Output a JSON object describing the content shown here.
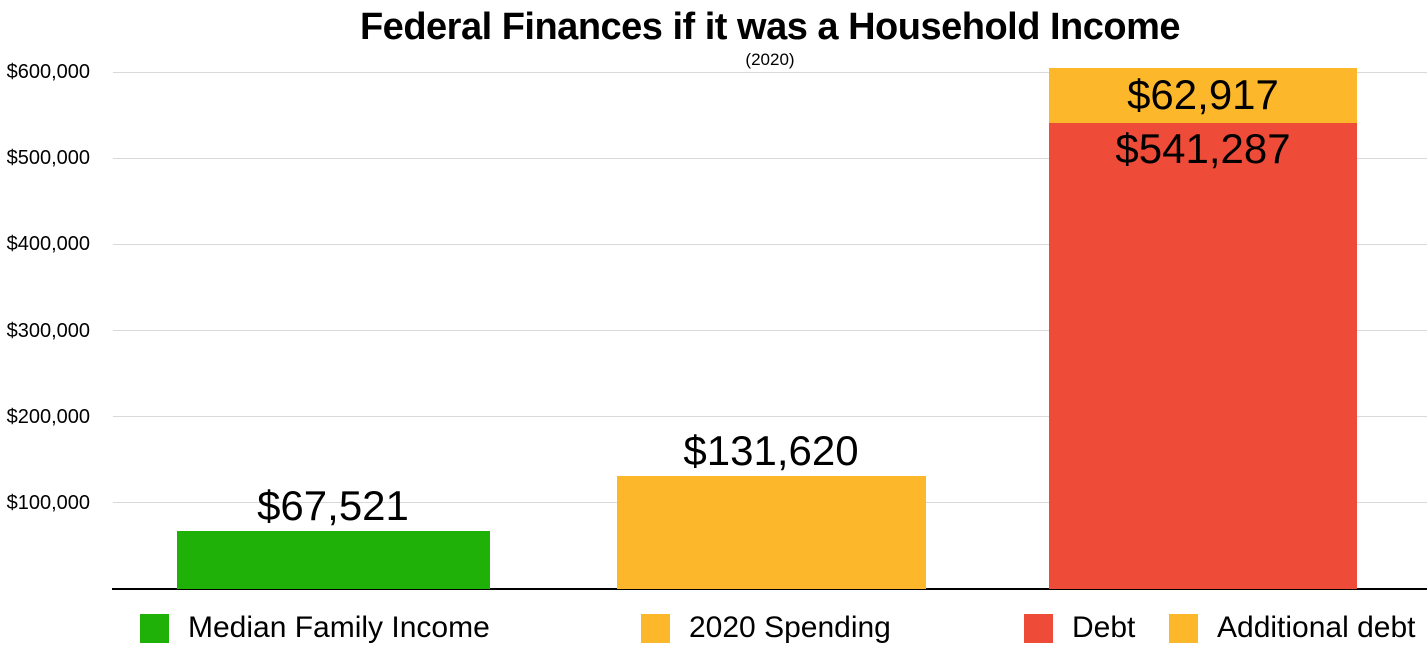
{
  "chart_data": {
    "type": "bar",
    "stacked": true,
    "title": "Federal Finances if it was a Household Income",
    "subtitle": "(2020)",
    "xlabel": "",
    "ylabel": "",
    "ylim": [
      0,
      600000
    ],
    "grid": true,
    "legend_position": "bottom",
    "y_axis": {
      "ticks": [
        {
          "value": 100000,
          "label": "$100,000"
        },
        {
          "value": 200000,
          "label": "$200,000"
        },
        {
          "value": 300000,
          "label": "$300,000"
        },
        {
          "value": 400000,
          "label": "$400,000"
        },
        {
          "value": 500000,
          "label": "$500,000"
        },
        {
          "value": 600000,
          "label": "$600,000"
        }
      ]
    },
    "bars": [
      {
        "category": "Median Family Income",
        "segments": [
          {
            "name": "Median Family Income",
            "value": 67521,
            "label": "$67,521",
            "color": "#1fb108"
          }
        ]
      },
      {
        "category": "2020 Spending",
        "segments": [
          {
            "name": "2020 Spending",
            "value": 131620,
            "label": "$131,620",
            "color": "#fcb72a"
          }
        ]
      },
      {
        "category": "Debt",
        "segments": [
          {
            "name": "Debt",
            "value": 541287,
            "label": "$541,287",
            "color": "#ee4b38"
          },
          {
            "name": "Additional debt",
            "value": 62917,
            "label": "$62,917",
            "color": "#fcb72a"
          }
        ]
      }
    ],
    "legend": [
      {
        "label": "Median Family Income",
        "color": "#1fb108"
      },
      {
        "label": "2020 Spending",
        "color": "#fcb72a"
      },
      {
        "label": "Debt",
        "color": "#ee4b38"
      },
      {
        "label": "Additional debt",
        "color": "#fcb72a"
      }
    ]
  }
}
